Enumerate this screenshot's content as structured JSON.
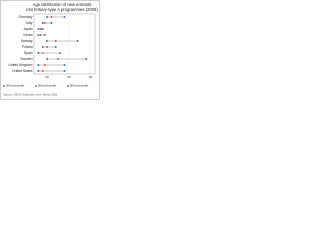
{
  "chart_data": {
    "type": "percentile-range",
    "title": [
      "Age distribution of new entrants",
      "into tertiary-type A programmes (2009)"
    ],
    "categories": [
      "Germany",
      "Italy",
      "Japan",
      "Korea",
      "Norway",
      "Poland",
      "Spain",
      "Sweden",
      "United Kingdom",
      "United States"
    ],
    "series": [
      {
        "name": "20th percentile",
        "color": "#1f4e9a",
        "values": [
          20,
          19,
          18,
          18,
          20,
          19,
          18,
          20,
          18,
          18
        ]
      },
      {
        "name": "50th percentile",
        "color": "#c0392b",
        "values": [
          21,
          19.5,
          18.5,
          18.5,
          22,
          20,
          19,
          22.5,
          19.5,
          19
        ]
      },
      {
        "name": "80th percentile",
        "color": "#1f4e9a",
        "values": [
          24,
          21,
          19,
          19.5,
          27,
          22,
          23,
          29,
          24,
          24
        ]
      }
    ],
    "xlim": [
      17,
      31
    ],
    "xticks": [
      20,
      25,
      30
    ],
    "grid": true,
    "source": "Source: OECD, Education at a Glance 2011"
  }
}
